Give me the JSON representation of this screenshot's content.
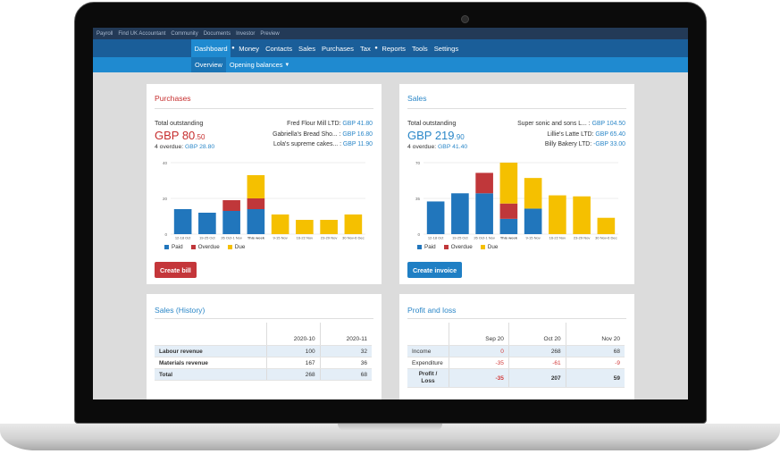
{
  "topbar": [
    "Payroll",
    "Find UK Accountant",
    "Community",
    "Documents",
    "Investor",
    "Preview"
  ],
  "mainnav": [
    "Dashboard",
    "Money",
    "Contacts",
    "Sales",
    "Purchases",
    "Tax",
    "Reports",
    "Tools",
    "Settings"
  ],
  "subnav": {
    "overview": "Overview",
    "opening": "Opening balances"
  },
  "legend": {
    "paid": "Paid",
    "overdue": "Overdue",
    "due": "Due"
  },
  "colors": {
    "paid": "#2176bc",
    "overdue": "#c0373a",
    "due": "#f5c000",
    "nav": "#1a5e99",
    "subnav": "#1f8ad0",
    "topbar": "#233a57"
  },
  "purchases": {
    "title": "Purchases",
    "total_label": "Total outstanding",
    "amount_main": "GBP 80",
    "amount_dec": ".50",
    "overdue_label": "4 overdue:",
    "overdue_value": "GBP 28.80",
    "outstanding": [
      {
        "name": "Fred Flour Mill LTD:",
        "value": "GBP 41.80"
      },
      {
        "name": "Gabriella's Bread Sho... :",
        "value": "GBP 16.80"
      },
      {
        "name": "Lola's supreme cakes... :",
        "value": "GBP 11.90"
      }
    ],
    "button": "Create bill"
  },
  "sales": {
    "title": "Sales",
    "total_label": "Total outstanding",
    "amount_main": "GBP 219",
    "amount_dec": ".90",
    "overdue_label": "4 overdue:",
    "overdue_value": "GBP 41.40",
    "outstanding": [
      {
        "name": "Super sonic and sons L... :",
        "value": "GBP 104.50"
      },
      {
        "name": "Lillie's Latte LTD:",
        "value": "GBP 65.40"
      },
      {
        "name": "Billy Bakery LTD:",
        "value": "-GBP 33.00"
      }
    ],
    "button": "Create invoice"
  },
  "chart_data": [
    {
      "type": "bar",
      "title": "",
      "stacked": true,
      "categories": [
        "12-18 Oct",
        "19-25 Oct",
        "26 Oct-1 Nov",
        "This week",
        "9-15 Nov",
        "16-22 Nov",
        "23-29 Nov",
        "30 Nov-6 Dec"
      ],
      "ylim": [
        0,
        40
      ],
      "yticks": [
        0,
        20,
        40
      ],
      "series": [
        {
          "name": "Paid",
          "values": [
            14,
            12,
            13,
            14,
            0,
            0,
            0,
            0
          ]
        },
        {
          "name": "Overdue",
          "values": [
            0,
            0,
            6,
            6,
            0,
            0,
            0,
            0
          ]
        },
        {
          "name": "Due",
          "values": [
            0,
            0,
            0,
            13,
            11,
            8,
            8,
            11
          ]
        }
      ]
    },
    {
      "type": "bar",
      "title": "",
      "stacked": true,
      "categories": [
        "12-18 Oct",
        "19-25 Oct",
        "26 Oct-1 Nov",
        "This week",
        "9-15 Nov",
        "16-22 Nov",
        "23-29 Nov",
        "30 Nov-6 Dec"
      ],
      "ylim": [
        0,
        70
      ],
      "yticks": [
        0,
        35,
        70
      ],
      "series": [
        {
          "name": "Paid",
          "values": [
            32,
            40,
            40,
            15,
            25,
            0,
            0,
            0
          ]
        },
        {
          "name": "Overdue",
          "values": [
            0,
            0,
            20,
            15,
            0,
            0,
            0,
            0
          ]
        },
        {
          "name": "Due",
          "values": [
            0,
            0,
            0,
            40,
            30,
            38,
            37,
            16
          ]
        }
      ]
    }
  ],
  "sales_history": {
    "title": "Sales (History)",
    "columns": [
      "2020-10",
      "2020-11"
    ],
    "rows": [
      {
        "label": "Labour revenue",
        "values": [
          "100",
          "32"
        ]
      },
      {
        "label": "Materials revenue",
        "values": [
          "167",
          "36"
        ]
      },
      {
        "label": "Total",
        "values": [
          "268",
          "68"
        ]
      }
    ]
  },
  "profit_loss": {
    "title": "Profit and loss",
    "columns": [
      "Sep 20",
      "Oct 20",
      "Nov 20"
    ],
    "rows": [
      {
        "label": "Income",
        "values": [
          "0",
          "268",
          "68"
        ]
      },
      {
        "label": "Expenditure",
        "values": [
          "-35",
          "-61",
          "-9"
        ]
      },
      {
        "label": "Profit / Loss",
        "values": [
          "-35",
          "207",
          "59"
        ]
      }
    ]
  }
}
